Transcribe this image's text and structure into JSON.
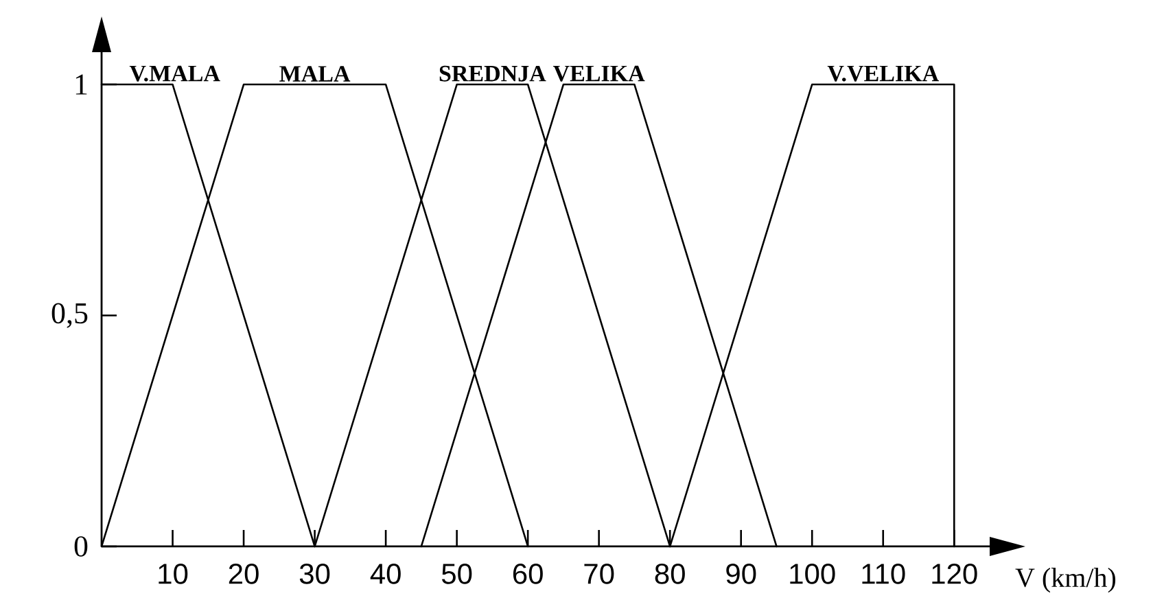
{
  "chart_data": {
    "type": "line",
    "xlabel": "V (km/h)",
    "xlim": [
      0,
      125
    ],
    "ylim": [
      0,
      1.07
    ],
    "xticks": [
      10,
      20,
      30,
      40,
      50,
      60,
      70,
      80,
      90,
      100,
      110,
      120
    ],
    "yticks": [
      0,
      {
        "value": 0.5,
        "label": "0,5"
      },
      1
    ],
    "marker": "none",
    "line_style": "solid",
    "series": [
      {
        "name": "V.MALA",
        "color": "#000000",
        "x": [
          0,
          10,
          30
        ],
        "values": [
          1,
          1,
          0
        ]
      },
      {
        "name": "MALA",
        "color": "#000000",
        "x": [
          0,
          20,
          40,
          60
        ],
        "values": [
          0,
          1,
          1,
          0
        ]
      },
      {
        "name": "SREDNJA",
        "color": "#000000",
        "x": [
          30,
          50,
          60,
          80
        ],
        "values": [
          0,
          1,
          1,
          0
        ]
      },
      {
        "name": "VELIKA",
        "color": "#000000",
        "x": [
          45,
          65,
          75,
          95
        ],
        "values": [
          0,
          1,
          1,
          0
        ]
      },
      {
        "name": "V.VELIKA",
        "color": "#000000",
        "x": [
          80,
          100,
          120,
          120
        ],
        "values": [
          0,
          1,
          1,
          0
        ]
      }
    ]
  }
}
